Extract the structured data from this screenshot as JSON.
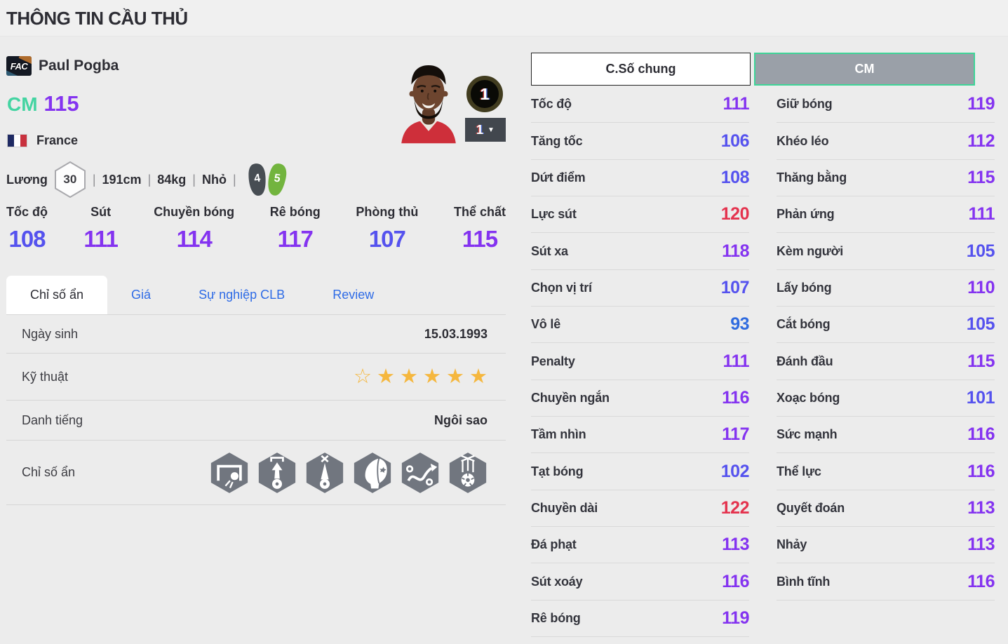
{
  "page": {
    "title": "THÔNG TIN CẦU THỦ"
  },
  "player": {
    "season_badge": "FAC",
    "name": "Paul Pogba",
    "position": "CM",
    "rating": 115,
    "nation": "France",
    "salary_label": "Lương",
    "salary": "30",
    "separator": "|",
    "height": "191cm",
    "weight": "84kg",
    "body_type": "Nhỏ",
    "foot_left": "4",
    "foot_right": "5",
    "level_badge": "1",
    "level_dropdown": "1"
  },
  "main_stats": [
    {
      "label": "Tốc độ",
      "value": 108
    },
    {
      "label": "Sút",
      "value": 111
    },
    {
      "label": "Chuyền bóng",
      "value": 114
    },
    {
      "label": "Rê bóng",
      "value": 117
    },
    {
      "label": "Phòng thủ",
      "value": 107
    },
    {
      "label": "Thể chất",
      "value": 115
    }
  ],
  "tabs": [
    {
      "id": "hidden-stats",
      "label": "Chỉ số ẩn",
      "active": true
    },
    {
      "id": "price",
      "label": "Giá",
      "active": false
    },
    {
      "id": "club-career",
      "label": "Sự nghiệp CLB",
      "active": false
    },
    {
      "id": "review",
      "label": "Review",
      "active": false
    }
  ],
  "info": {
    "rows": [
      {
        "label": "Ngày sinh",
        "value": "15.03.1993"
      },
      {
        "label": "Kỹ thuật",
        "stars_outline": 1,
        "stars_filled": 5
      },
      {
        "label": "Danh tiếng",
        "value": "Ngôi sao"
      },
      {
        "label": "Chỉ số ẩn",
        "icons": [
          "goal-net-ball-icon",
          "goal-arrow-ball-icon",
          "arrow-cross-ball-icon",
          "head-profile-icon",
          "winding-arrows-icon",
          "ball-strings-icon"
        ]
      }
    ]
  },
  "detail": {
    "tab_general": "C.Số chung",
    "tab_position": "CM",
    "left": [
      {
        "label": "Tốc độ",
        "value": 111
      },
      {
        "label": "Tăng tốc",
        "value": 106
      },
      {
        "label": "Dứt điểm",
        "value": 108
      },
      {
        "label": "Lực sút",
        "value": 120
      },
      {
        "label": "Sút xa",
        "value": 118
      },
      {
        "label": "Chọn vị trí",
        "value": 107
      },
      {
        "label": "Vô lê",
        "value": 93
      },
      {
        "label": "Penalty",
        "value": 111
      },
      {
        "label": "Chuyền ngắn",
        "value": 116
      },
      {
        "label": "Tầm nhìn",
        "value": 117
      },
      {
        "label": "Tạt bóng",
        "value": 102
      },
      {
        "label": "Chuyền dài",
        "value": 122
      },
      {
        "label": "Đá phạt",
        "value": 113
      },
      {
        "label": "Sút xoáy",
        "value": 116
      },
      {
        "label": "Rê bóng",
        "value": 119
      }
    ],
    "right": [
      {
        "label": "Giữ bóng",
        "value": 119
      },
      {
        "label": "Khéo léo",
        "value": 112
      },
      {
        "label": "Thăng bằng",
        "value": 115
      },
      {
        "label": "Phản ứng",
        "value": 111
      },
      {
        "label": "Kèm người",
        "value": 105
      },
      {
        "label": "Lấy bóng",
        "value": 110
      },
      {
        "label": "Cắt bóng",
        "value": 105
      },
      {
        "label": "Đánh đầu",
        "value": 115
      },
      {
        "label": "Xoạc bóng",
        "value": 101
      },
      {
        "label": "Sức mạnh",
        "value": 116
      },
      {
        "label": "Thể lực",
        "value": 116
      },
      {
        "label": "Quyết đoán",
        "value": 113
      },
      {
        "label": "Nhảy",
        "value": 113
      },
      {
        "label": "Bình tĩnh",
        "value": 116
      }
    ]
  },
  "colors": {
    "red": "#e4334e",
    "purple": "#8433f0",
    "indigo": "#5552ee",
    "blue": "#2f6bdf",
    "mint": "#44d4a2",
    "link": "#2e6be6",
    "gold": "#f5b73e"
  },
  "value_rules": [
    {
      "min": 120,
      "color": "red"
    },
    {
      "min": 110,
      "color": "purple"
    },
    {
      "min": 100,
      "color": "indigo"
    },
    {
      "min": 0,
      "color": "blue"
    }
  ]
}
